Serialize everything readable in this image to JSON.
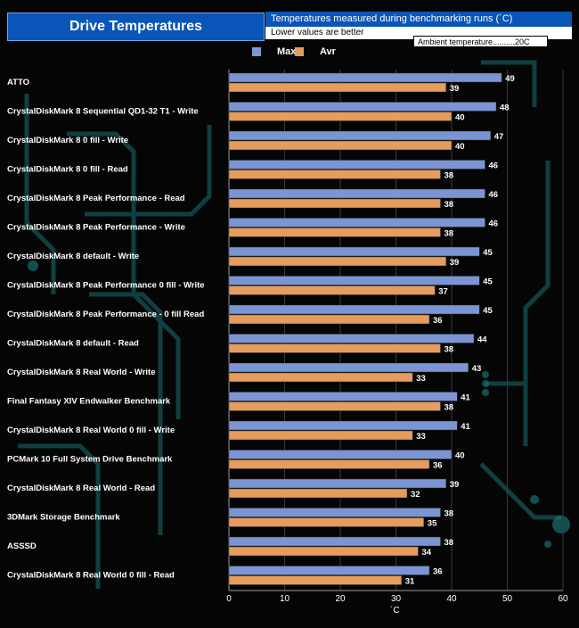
{
  "title": "Drive Temperatures",
  "subtitle": "Temperatures measured during benchmarking runs (´C)",
  "note": "Lower values are better",
  "ambient": "Ambient  temperature..........20C",
  "colors": {
    "max": "#7b95d4",
    "avr": "#e69c5c",
    "title_bg": "#0a55b8"
  },
  "chart_data": {
    "type": "bar",
    "orientation": "horizontal",
    "title": "Drive Temperatures",
    "xlabel": "´C",
    "ylabel": "",
    "xlim": [
      0,
      60
    ],
    "xticks": [
      "0",
      "10",
      "20",
      "30",
      "40",
      "50",
      "60"
    ],
    "grid": true,
    "legend": "top",
    "categories": [
      "ATTO",
      "CrystalDiskMark 8 Sequential QD1-32 T1 -  Write",
      "CrystalDiskMark 8 0 fill - Write",
      "CrystalDiskMark 8 0 fill - Read",
      "CrystalDiskMark 8 Peak Performance - Read",
      "CrystalDiskMark 8 Peak Performance - Write",
      "CrystalDiskMark 8 default - Write",
      "CrystalDiskMark 8 Peak Performance 0 fill - Write",
      "CrystalDiskMark 8 Peak Performance - 0 fill Read",
      "CrystalDiskMark 8 default - Read",
      "CrystalDiskMark 8 Real World - Write",
      "Final Fantasy XIV Endwalker Benchmark",
      "CrystalDiskMark 8 Real World 0 fill - Write",
      "PCMark 10 Full System Drive Benchmark",
      "CrystalDiskMark 8 Real World - Read",
      "3DMark Storage Benchmark",
      "ASSSD",
      "CrystalDiskMark 8 Real World 0 fill - Read"
    ],
    "series": [
      {
        "name": "Max",
        "values": [
          49,
          48,
          47,
          46,
          46,
          46,
          45,
          45,
          45,
          44,
          43,
          41,
          41,
          40,
          39,
          38,
          38,
          36
        ]
      },
      {
        "name": "Avr",
        "values": [
          39,
          40,
          40,
          38,
          38,
          38,
          39,
          37,
          36,
          38,
          33,
          38,
          33,
          36,
          32,
          35,
          34,
          31
        ]
      }
    ]
  }
}
